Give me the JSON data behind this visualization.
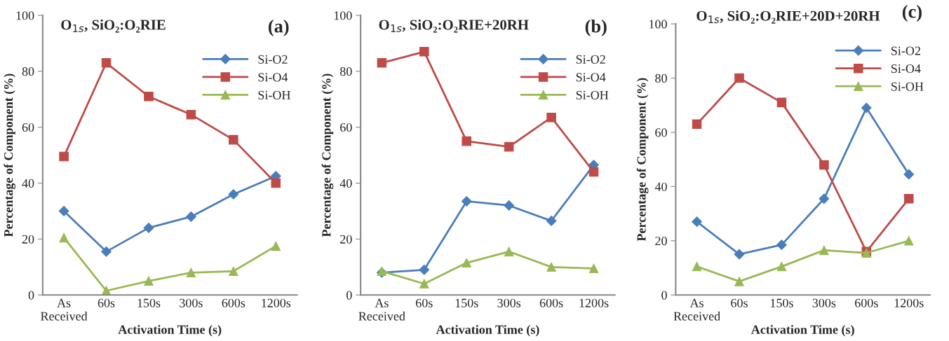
{
  "chart_data": [
    {
      "type": "line",
      "title": "O$_{1s}$, SiO₂:O₂RIE",
      "annotations": [
        "(a)"
      ],
      "xlabel": "Activation Time (s)",
      "ylabel": "Percentage of Component (%)",
      "categories": [
        "As\nReceived",
        "60s",
        "150s",
        "300s",
        "600s",
        "1200s"
      ],
      "ylim": [
        0,
        100
      ],
      "yticks": [
        0,
        20,
        40,
        60,
        80,
        100
      ],
      "grid": false,
      "legend": "top right",
      "line_style": "solid",
      "series": [
        {
          "name": "Si-O2",
          "color": "#4a7ebb",
          "marker": "diamond",
          "values": [
            30,
            15.5,
            24,
            28,
            36,
            42.5
          ]
        },
        {
          "name": "Si-O4",
          "color": "#be4b48",
          "marker": "square",
          "values": [
            49.5,
            83,
            71,
            64.5,
            55.5,
            40
          ]
        },
        {
          "name": "Si-OH",
          "color": "#98b954",
          "marker": "triangle",
          "values": [
            20.5,
            1.5,
            5,
            8,
            8.5,
            17.5
          ]
        }
      ]
    },
    {
      "type": "line",
      "title": "O$_{1s}$, SiO₂:O₂RIE+20RH",
      "annotations": [
        "(b)"
      ],
      "xlabel": "Activation Time (s)",
      "ylabel": "Percentage of Component (%)",
      "categories": [
        "As\nReceived",
        "60s",
        "150s",
        "300s",
        "600s",
        "1200s"
      ],
      "ylim": [
        0,
        100
      ],
      "yticks": [
        0,
        20,
        40,
        60,
        80,
        100
      ],
      "grid": false,
      "legend": "top right",
      "line_style": "solid",
      "series": [
        {
          "name": "Si-O2",
          "color": "#4a7ebb",
          "marker": "diamond",
          "values": [
            8,
            9,
            33.5,
            32,
            26.5,
            46.5
          ]
        },
        {
          "name": "Si-O4",
          "color": "#be4b48",
          "marker": "square",
          "values": [
            83,
            87,
            55,
            53,
            63.5,
            44
          ]
        },
        {
          "name": "Si-OH",
          "color": "#98b954",
          "marker": "triangle",
          "values": [
            8.5,
            4,
            11.5,
            15.5,
            10,
            9.5
          ]
        }
      ]
    },
    {
      "type": "line",
      "title": "O$_{1s}$, SiO₂:O₂RIE+20D+20RH",
      "annotations": [
        "(c)"
      ],
      "xlabel": "Activation Time (s)",
      "ylabel": "Percentage of Component (%)",
      "categories": [
        "As\nReceived",
        "60s",
        "150s",
        "300s",
        "600s",
        "1200s"
      ],
      "ylim": [
        0,
        100
      ],
      "yticks": [
        0,
        20,
        40,
        60,
        80,
        100
      ],
      "grid": false,
      "legend": "top right",
      "line_style": "solid",
      "series": [
        {
          "name": "Si-O2",
          "color": "#4a7ebb",
          "marker": "diamond",
          "values": [
            27,
            15,
            18.5,
            35.5,
            69,
            44.5
          ]
        },
        {
          "name": "Si-O4",
          "color": "#be4b48",
          "marker": "square",
          "values": [
            63,
            80,
            71,
            48,
            16,
            35.5
          ]
        },
        {
          "name": "Si-OH",
          "color": "#98b954",
          "marker": "triangle",
          "values": [
            10.5,
            5,
            10.5,
            16.5,
            15.5,
            20
          ]
        }
      ]
    }
  ]
}
